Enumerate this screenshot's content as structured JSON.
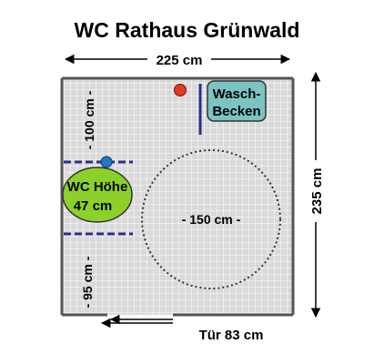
{
  "title": "WC Rathaus Grünwald",
  "width_label": "225 cm",
  "height_label": "235 cm",
  "sink_label_line1": "Wasch-",
  "sink_label_line2": "Becken",
  "wc_label_line1": "WC Höhe",
  "wc_label_line2": "47 cm",
  "turning_circle_label": "- 150 cm -",
  "upper_clearance_label": "- 100 cm -",
  "lower_clearance_label": "- 95 cm -",
  "door_label": "Tür 83 cm",
  "colors": {
    "floor_tile": "#d9d9d9",
    "grout": "#ffffff",
    "wall": "#555555",
    "sink_fill": "#7cc4c4",
    "wc_fill": "#8cd12a",
    "grab_bar": "#2a2f8a",
    "alarm_button": "#e03a1e",
    "wc_flush_button": "#1f78c8"
  }
}
